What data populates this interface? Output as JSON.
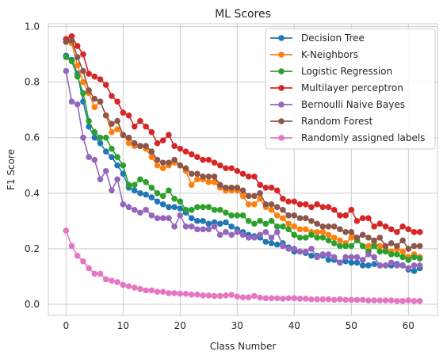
{
  "chart_data": {
    "type": "line",
    "title": "ML Scores",
    "xlabel": "Class Number",
    "ylabel": "F1 Score",
    "xlim": [
      -3.1,
      65.1
    ],
    "ylim": [
      -0.04,
      1.01
    ],
    "xticks": [
      0,
      10,
      20,
      30,
      40,
      50,
      60
    ],
    "xtick_labels": [
      "0",
      "10",
      "20",
      "30",
      "40",
      "50",
      "60"
    ],
    "yticks": [
      0.0,
      0.2,
      0.4,
      0.6,
      0.8,
      1.0
    ],
    "ytick_labels": [
      "0.0",
      "0.2",
      "0.4",
      "0.6",
      "0.8",
      "1.0"
    ],
    "grid": true,
    "legend_position": "top-right",
    "series": [
      {
        "name": "Decision Tree",
        "color": "#1f77b4",
        "values": [
          0.895,
          0.88,
          0.83,
          0.73,
          0.64,
          0.6,
          0.58,
          0.55,
          0.53,
          0.5,
          0.47,
          0.42,
          0.41,
          0.4,
          0.395,
          0.385,
          0.37,
          0.36,
          0.35,
          0.35,
          0.345,
          0.33,
          0.31,
          0.3,
          0.3,
          0.29,
          0.295,
          0.29,
          0.295,
          0.28,
          0.27,
          0.26,
          0.25,
          0.245,
          0.24,
          0.225,
          0.22,
          0.215,
          0.22,
          0.205,
          0.19,
          0.19,
          0.185,
          0.175,
          0.175,
          0.175,
          0.16,
          0.16,
          0.15,
          0.155,
          0.15,
          0.15,
          0.14,
          0.14,
          0.145,
          0.14,
          0.14,
          0.14,
          0.145,
          0.14,
          0.125,
          0.12,
          0.13
        ]
      },
      {
        "name": "K-Neighbors",
        "color": "#ff7f0e",
        "values": [
          0.955,
          0.94,
          0.86,
          0.8,
          0.76,
          0.71,
          0.73,
          0.68,
          0.62,
          0.63,
          0.61,
          0.58,
          0.57,
          0.57,
          0.56,
          0.53,
          0.5,
          0.49,
          0.5,
          0.51,
          0.5,
          0.48,
          0.43,
          0.45,
          0.45,
          0.44,
          0.44,
          0.42,
          0.41,
          0.41,
          0.41,
          0.39,
          0.36,
          0.36,
          0.38,
          0.35,
          0.34,
          0.32,
          0.31,
          0.29,
          0.28,
          0.27,
          0.27,
          0.26,
          0.26,
          0.26,
          0.25,
          0.24,
          0.23,
          0.22,
          0.24,
          0.24,
          0.21,
          0.21,
          0.22,
          0.21,
          0.2,
          0.19,
          0.2,
          0.19,
          0.17,
          0.18,
          0.17
        ]
      },
      {
        "name": "Logistic Regression",
        "color": "#2ca02c",
        "values": [
          0.89,
          0.875,
          0.82,
          0.76,
          0.66,
          0.62,
          0.6,
          0.6,
          0.56,
          0.53,
          0.5,
          0.43,
          0.43,
          0.45,
          0.44,
          0.42,
          0.4,
          0.39,
          0.41,
          0.38,
          0.37,
          0.34,
          0.34,
          0.35,
          0.35,
          0.35,
          0.34,
          0.34,
          0.33,
          0.32,
          0.32,
          0.32,
          0.3,
          0.29,
          0.3,
          0.29,
          0.3,
          0.28,
          0.28,
          0.27,
          0.25,
          0.24,
          0.24,
          0.25,
          0.24,
          0.24,
          0.23,
          0.22,
          0.21,
          0.21,
          0.21,
          0.23,
          0.21,
          0.19,
          0.21,
          0.19,
          0.19,
          0.18,
          0.18,
          0.17,
          0.16,
          0.17,
          0.165
        ]
      },
      {
        "name": "Multilayer perceptron",
        "color": "#d62728",
        "values": [
          0.955,
          0.965,
          0.93,
          0.9,
          0.83,
          0.82,
          0.81,
          0.79,
          0.75,
          0.73,
          0.69,
          0.68,
          0.64,
          0.66,
          0.64,
          0.62,
          0.58,
          0.59,
          0.61,
          0.57,
          0.56,
          0.55,
          0.54,
          0.53,
          0.52,
          0.52,
          0.51,
          0.5,
          0.49,
          0.49,
          0.48,
          0.47,
          0.46,
          0.46,
          0.43,
          0.42,
          0.42,
          0.41,
          0.38,
          0.37,
          0.37,
          0.36,
          0.36,
          0.35,
          0.36,
          0.35,
          0.35,
          0.34,
          0.32,
          0.32,
          0.34,
          0.3,
          0.31,
          0.31,
          0.28,
          0.29,
          0.28,
          0.27,
          0.26,
          0.28,
          0.27,
          0.26,
          0.26
        ]
      },
      {
        "name": "Bernoulli Naive Bayes",
        "color": "#9467bd",
        "values": [
          0.84,
          0.73,
          0.72,
          0.6,
          0.53,
          0.52,
          0.45,
          0.48,
          0.41,
          0.45,
          0.36,
          0.35,
          0.34,
          0.33,
          0.34,
          0.32,
          0.31,
          0.31,
          0.31,
          0.28,
          0.32,
          0.28,
          0.28,
          0.27,
          0.27,
          0.27,
          0.28,
          0.25,
          0.26,
          0.25,
          0.26,
          0.25,
          0.24,
          0.24,
          0.25,
          0.26,
          0.24,
          0.26,
          0.21,
          0.2,
          0.2,
          0.19,
          0.19,
          0.2,
          0.17,
          0.18,
          0.18,
          0.17,
          0.15,
          0.17,
          0.17,
          0.17,
          0.16,
          0.18,
          0.17,
          0.14,
          0.14,
          0.15,
          0.14,
          0.14,
          0.13,
          0.14,
          0.14
        ]
      },
      {
        "name": "Random Forest",
        "color": "#8c564b",
        "values": [
          0.945,
          0.95,
          0.89,
          0.84,
          0.77,
          0.74,
          0.73,
          0.68,
          0.65,
          0.66,
          0.61,
          0.6,
          0.58,
          0.57,
          0.57,
          0.55,
          0.52,
          0.51,
          0.51,
          0.52,
          0.5,
          0.49,
          0.47,
          0.47,
          0.46,
          0.46,
          0.46,
          0.43,
          0.42,
          0.42,
          0.42,
          0.41,
          0.39,
          0.39,
          0.4,
          0.36,
          0.36,
          0.35,
          0.34,
          0.32,
          0.32,
          0.31,
          0.31,
          0.3,
          0.29,
          0.28,
          0.28,
          0.28,
          0.27,
          0.26,
          0.26,
          0.24,
          0.25,
          0.24,
          0.23,
          0.24,
          0.21,
          0.22,
          0.21,
          0.23,
          0.2,
          0.21,
          0.21
        ]
      },
      {
        "name": "Randomly assigned labels",
        "color": "#e377c2",
        "values": [
          0.265,
          0.21,
          0.175,
          0.155,
          0.13,
          0.11,
          0.11,
          0.09,
          0.085,
          0.08,
          0.07,
          0.065,
          0.06,
          0.055,
          0.05,
          0.05,
          0.045,
          0.045,
          0.04,
          0.04,
          0.038,
          0.038,
          0.035,
          0.035,
          0.032,
          0.032,
          0.03,
          0.03,
          0.032,
          0.034,
          0.028,
          0.025,
          0.025,
          0.03,
          0.024,
          0.022,
          0.022,
          0.022,
          0.02,
          0.022,
          0.022,
          0.02,
          0.02,
          0.018,
          0.018,
          0.018,
          0.018,
          0.016,
          0.018,
          0.016,
          0.016,
          0.016,
          0.016,
          0.014,
          0.014,
          0.014,
          0.014,
          0.014,
          0.012,
          0.012,
          0.014,
          0.012,
          0.012
        ]
      }
    ]
  }
}
